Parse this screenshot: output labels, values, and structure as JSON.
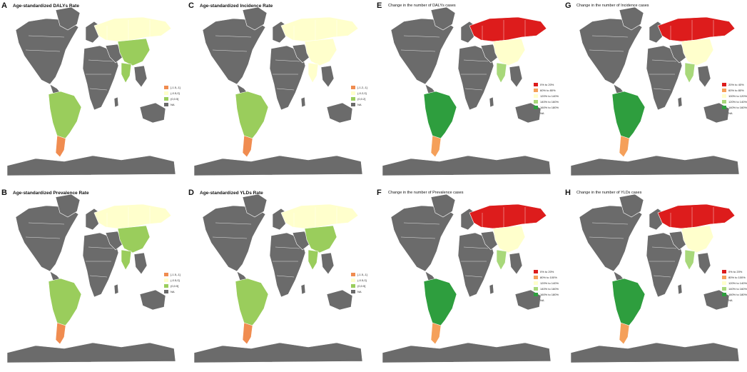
{
  "colors": {
    "na": "#6b6b6b",
    "neg1": "#f08c50",
    "zero": "#ffffcc",
    "pos": "#9acd5c",
    "red": "#dd1c1c",
    "orange": "#f5a05a",
    "lightyellow": "#ffffcc",
    "lightgreen": "#a8d87a",
    "green": "#2e9e3e",
    "gray": "#6b6b6b"
  },
  "panels": [
    {
      "letter": "A",
      "title": "Age-standardized DALYs Rate",
      "style": "rate",
      "legend": [
        {
          "label": "[-1.5,-1]",
          "color": "#f08c50"
        },
        {
          "label": "(-0.5,0]",
          "color": "#ffffcc"
        },
        {
          "label": "(0,0.5]",
          "color": "#9acd5c"
        },
        {
          "label": "NA",
          "color": "#6b6b6b"
        }
      ],
      "fill": {
        "southamerica": "#9acd5c",
        "argentina": "#f08c50",
        "russia": "#ffffcc",
        "china": "#9acd5c",
        "india": "#9acd5c"
      }
    },
    {
      "letter": "C",
      "title": "Age-standardized Incidence Rate",
      "style": "rate",
      "legend": [
        {
          "label": "[-1.2,-1]",
          "color": "#f08c50"
        },
        {
          "label": "(-0.2,0]",
          "color": "#ffffcc"
        },
        {
          "label": "(0,0.2]",
          "color": "#9acd5c"
        },
        {
          "label": "NA",
          "color": "#6b6b6b"
        }
      ],
      "fill": {
        "southamerica": "#9acd5c",
        "argentina": "#f08c50",
        "russia": "#ffffcc",
        "china": "#ffffcc",
        "india": "#ffffcc"
      }
    },
    {
      "letter": "E",
      "title": "Change in the number of DALYs cases",
      "style": "change",
      "legend": [
        {
          "label": "0% to 20%",
          "color": "#dd1c1c"
        },
        {
          "label": "60% to 80%",
          "color": "#f5a05a"
        },
        {
          "label": "120% to 140%",
          "color": "#ffffcc"
        },
        {
          "label": "140% to 160%",
          "color": "#a8d87a"
        },
        {
          "label": "160% to 180%",
          "color": "#2e9e3e"
        },
        {
          "label": "NA",
          "color": "#6b6b6b"
        }
      ],
      "fill": {
        "southamerica": "#2e9e3e",
        "argentina": "#f5a05a",
        "russia": "#dd1c1c",
        "china": "#ffffcc",
        "india": "#a8d87a"
      }
    },
    {
      "letter": "G",
      "title": "Change in the number of Incidence cases",
      "style": "change",
      "legend": [
        {
          "label": "20% to 40%",
          "color": "#dd1c1c"
        },
        {
          "label": "60% to 80%",
          "color": "#f5a05a"
        },
        {
          "label": "100% to 120%",
          "color": "#ffffcc"
        },
        {
          "label": "120% to 140%",
          "color": "#a8d87a"
        },
        {
          "label": "140% to 160%",
          "color": "#2e9e3e"
        },
        {
          "label": "NA",
          "color": "#6b6b6b"
        }
      ],
      "fill": {
        "southamerica": "#2e9e3e",
        "argentina": "#f5a05a",
        "russia": "#dd1c1c",
        "china": "#ffffcc",
        "india": "#a8d87a"
      }
    },
    {
      "letter": "B",
      "title": "Age-standardized Prevalence Rate",
      "style": "rate",
      "legend": [
        {
          "label": "[-1.5,-1]",
          "color": "#f08c50"
        },
        {
          "label": "(-0.5,0]",
          "color": "#ffffcc"
        },
        {
          "label": "(0,0.5]",
          "color": "#9acd5c"
        },
        {
          "label": "NA",
          "color": "#6b6b6b"
        }
      ],
      "fill": {
        "southamerica": "#9acd5c",
        "argentina": "#f08c50",
        "russia": "#ffffcc",
        "china": "#9acd5c",
        "india": "#9acd5c"
      }
    },
    {
      "letter": "D",
      "title": "Age-standardized YLDs Rate",
      "style": "rate",
      "legend": [
        {
          "label": "[-1.5,-1]",
          "color": "#f08c50"
        },
        {
          "label": "(-0.5,0]",
          "color": "#ffffcc"
        },
        {
          "label": "(0,0.5]",
          "color": "#9acd5c"
        },
        {
          "label": "NA",
          "color": "#6b6b6b"
        }
      ],
      "fill": {
        "southamerica": "#9acd5c",
        "argentina": "#f08c50",
        "russia": "#ffffcc",
        "china": "#9acd5c",
        "india": "#9acd5c"
      }
    },
    {
      "letter": "F",
      "title": "Change in the number of Prevalence cases",
      "style": "change",
      "legend": [
        {
          "label": "0% to 20%",
          "color": "#dd1c1c"
        },
        {
          "label": "80% to 100%",
          "color": "#f5a05a"
        },
        {
          "label": "120% to 140%",
          "color": "#ffffcc"
        },
        {
          "label": "140% to 160%",
          "color": "#a8d87a"
        },
        {
          "label": "160% to 180%",
          "color": "#2e9e3e"
        },
        {
          "label": "NA",
          "color": "#6b6b6b"
        }
      ],
      "fill": {
        "southamerica": "#2e9e3e",
        "argentina": "#f5a05a",
        "russia": "#dd1c1c",
        "china": "#ffffcc",
        "india": "#a8d87a"
      }
    },
    {
      "letter": "H",
      "title": "Change in the number of YLDs cases",
      "style": "change",
      "legend": [
        {
          "label": "0% to 20%",
          "color": "#dd1c1c"
        },
        {
          "label": "80% to 100%",
          "color": "#f5a05a"
        },
        {
          "label": "120% to 140%",
          "color": "#ffffcc"
        },
        {
          "label": "140% to 160%",
          "color": "#a8d87a"
        },
        {
          "label": "160% to 180%",
          "color": "#2e9e3e"
        },
        {
          "label": "NA",
          "color": "#6b6b6b"
        }
      ],
      "fill": {
        "southamerica": "#2e9e3e",
        "argentina": "#f5a05a",
        "russia": "#dd1c1c",
        "china": "#ffffcc",
        "india": "#a8d87a"
      }
    }
  ]
}
